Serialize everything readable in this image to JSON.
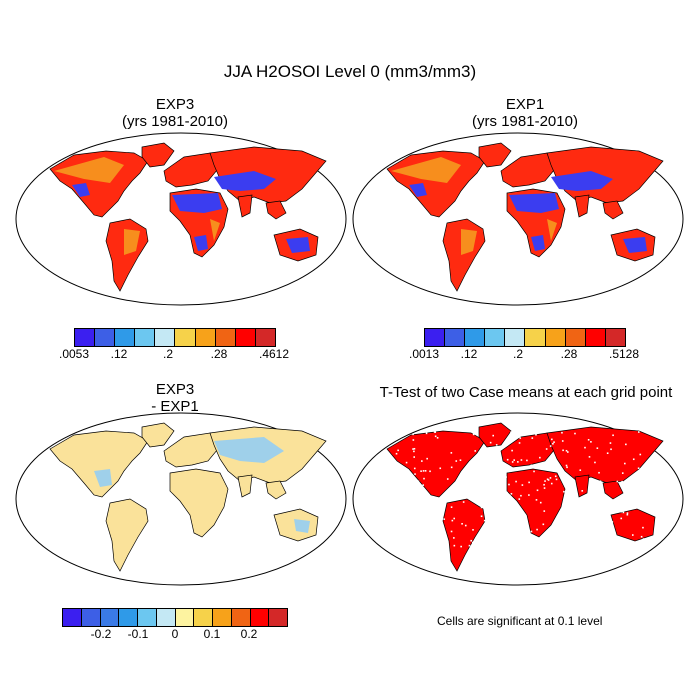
{
  "figure": {
    "title": "JJA H2OSOI Level 0 (mm3/mm3)"
  },
  "panels": [
    {
      "id": "exp3",
      "title_line1": "EXP3",
      "title_line2": "(yrs 1981-2010)",
      "colorbar": {
        "colors": [
          "#3b1ff0",
          "#3d5fe6",
          "#2f9ae8",
          "#6cc7f0",
          "#c4e8f4",
          "#f6d24a",
          "#f7a21a",
          "#f06414",
          "#ff0000",
          "#d42828"
        ],
        "labels": [
          ".0053",
          ".12",
          ".2",
          ".28",
          ".4612"
        ]
      }
    },
    {
      "id": "exp1",
      "title_line1": "EXP1",
      "title_line2": "(yrs 1981-2010)",
      "colorbar": {
        "colors": [
          "#3b1ff0",
          "#3d5fe6",
          "#2f9ae8",
          "#6cc7f0",
          "#c4e8f4",
          "#f6d24a",
          "#f7a21a",
          "#f06414",
          "#ff0000",
          "#d42828"
        ],
        "labels": [
          ".0013",
          ".12",
          ".2",
          ".28",
          ".5128"
        ]
      }
    },
    {
      "id": "diff",
      "title_line1": "EXP3",
      "title_line2": " - EXP1",
      "colorbar": {
        "colors": [
          "#3b1ff0",
          "#3d5fe6",
          "#3a7ae6",
          "#2f9ae8",
          "#6cc7f0",
          "#c4e8f4",
          "#fdf3a0",
          "#f6d24a",
          "#f7a21a",
          "#f06414",
          "#ff0000",
          "#d42828"
        ],
        "labels": [
          "-0.2",
          "-0.1",
          "0",
          "0.1",
          "0.2"
        ]
      }
    },
    {
      "id": "ttest",
      "title_line1": "T-Test of two Case means at each grid point",
      "note": "Cells are significant at 0.1 level"
    }
  ],
  "map_colors": {
    "dry": "#3b3df0",
    "mid": "#f6a020",
    "wet": "#ff2a10",
    "diff_land": "#fae29a",
    "diff_blue": "#9fd0ea",
    "sig": "#ff0000"
  }
}
